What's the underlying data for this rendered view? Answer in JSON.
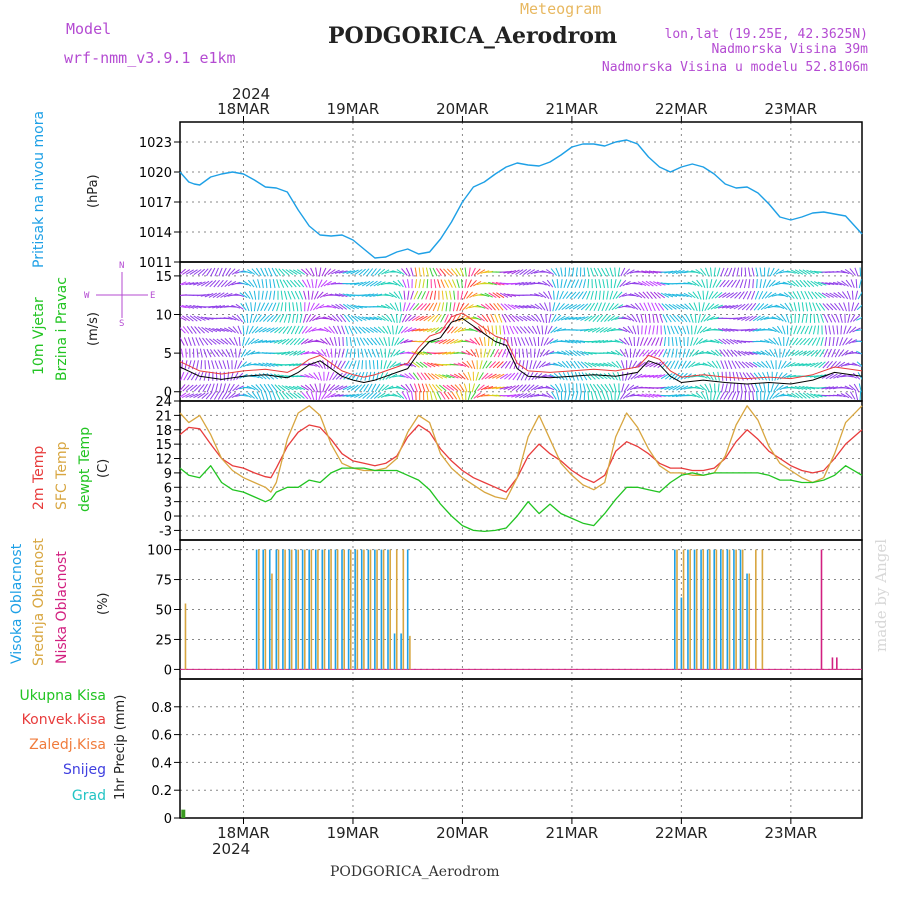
{
  "header": {
    "model_label": "Model",
    "model_name": "wrf-nmm_v3.9.1 e1km",
    "product": "Meteogram",
    "station": "PODGORICA_Aerodrom",
    "lonlat": "lon,lat (19.25E, 42.3625N)",
    "elevation": "Nadmorska Visina 39m",
    "model_elevation": "Nadmorska Visina u modelu 52.8106m",
    "watermark": "made by Angel",
    "footer_station": "PODGORICA_Aerodrom",
    "year": "2024"
  },
  "colors": {
    "pressure": "#1ea0e6",
    "t2m": "#e83c3c",
    "sfc": "#d8a640",
    "dewpt": "#22c422",
    "cloud_high": "#1ea0e6",
    "cloud_mid": "#d8a640",
    "cloud_low": "#d22080",
    "label_wind": "#22c422",
    "label_precip_total": "#22c422",
    "label_precip_conv": "#e83c3c",
    "label_precip_frozen": "#f07c3c",
    "label_snow": "#4040e0",
    "label_hail": "#22c4c4"
  },
  "chart_data": [
    {
      "type": "line",
      "title": "Pritisak na nivou mora",
      "ylabel": "(hPa)",
      "ylim": [
        1011,
        1025
      ],
      "yticks": [
        1011,
        1014,
        1017,
        1020,
        1023
      ],
      "x_unit": "days from 18MAR 00UTC",
      "xlim": [
        -0.58,
        5.65
      ],
      "xtick_labels": [
        "18MAR",
        "19MAR",
        "20MAR",
        "21MAR",
        "22MAR",
        "23MAR"
      ],
      "series": [
        {
          "name": "",
          "x": [
            -0.58,
            -0.5,
            -0.45,
            -0.4,
            -0.3,
            -0.2,
            -0.1,
            0.0,
            0.1,
            0.2,
            0.3,
            0.4,
            0.5,
            0.6,
            0.7,
            0.8,
            0.9,
            1.0,
            1.1,
            1.2,
            1.3,
            1.4,
            1.5,
            1.6,
            1.7,
            1.8,
            1.9,
            2.0,
            2.1,
            2.2,
            2.3,
            2.4,
            2.5,
            2.6,
            2.7,
            2.8,
            2.9,
            3.0,
            3.1,
            3.2,
            3.3,
            3.4,
            3.5,
            3.6,
            3.7,
            3.8,
            3.9,
            4.0,
            4.1,
            4.2,
            4.3,
            4.4,
            4.5,
            4.6,
            4.7,
            4.8,
            4.9,
            5.0,
            5.1,
            5.2,
            5.3,
            5.4,
            5.5,
            5.65
          ],
          "y": [
            1020.0,
            1019.0,
            1018.8,
            1018.7,
            1019.5,
            1019.8,
            1020.0,
            1019.8,
            1019.2,
            1018.5,
            1018.4,
            1018.0,
            1016.2,
            1014.6,
            1013.7,
            1013.6,
            1013.7,
            1013.2,
            1012.3,
            1011.4,
            1011.5,
            1012.0,
            1012.3,
            1011.8,
            1012.0,
            1013.3,
            1015.0,
            1017.0,
            1018.5,
            1019.0,
            1019.8,
            1020.5,
            1020.9,
            1020.7,
            1020.6,
            1021.0,
            1021.7,
            1022.5,
            1022.8,
            1022.8,
            1022.6,
            1023.0,
            1023.2,
            1022.8,
            1021.5,
            1020.5,
            1020.0,
            1020.5,
            1020.8,
            1020.5,
            1019.8,
            1018.8,
            1018.4,
            1018.5,
            1017.9,
            1016.8,
            1015.5,
            1015.2,
            1015.5,
            1015.9,
            1016.0,
            1015.8,
            1015.6,
            1013.8
          ]
        }
      ]
    },
    {
      "type": "line",
      "title": "10m Vjetar",
      "subtitle": "Brzina i Pravac",
      "ylabel": "(m/s)",
      "direction_legend": [
        "N",
        "W",
        "E",
        "S"
      ],
      "ylim": [
        -1.2,
        16.8
      ],
      "yticks": [
        0,
        5,
        10,
        15
      ],
      "xlim": [
        -0.58,
        5.65
      ],
      "series": [
        {
          "name": "",
          "x": [
            -0.58,
            -0.4,
            -0.2,
            0.0,
            0.2,
            0.4,
            0.5,
            0.6,
            0.7,
            0.8,
            0.9,
            1.0,
            1.1,
            1.2,
            1.3,
            1.4,
            1.5,
            1.6,
            1.7,
            1.8,
            1.9,
            2.0,
            2.1,
            2.2,
            2.3,
            2.4,
            2.5,
            2.6,
            2.8,
            3.0,
            3.2,
            3.4,
            3.6,
            3.7,
            3.8,
            3.9,
            4.0,
            4.2,
            4.4,
            4.6,
            4.8,
            5.0,
            5.2,
            5.4,
            5.65
          ],
          "y": [
            3.2,
            2.0,
            1.6,
            2.0,
            2.2,
            1.8,
            2.5,
            3.5,
            4.0,
            3.0,
            2.0,
            1.5,
            1.2,
            1.5,
            2.0,
            2.5,
            3.0,
            5.0,
            6.5,
            7.0,
            9.0,
            9.5,
            8.5,
            7.5,
            6.5,
            6.0,
            3.0,
            2.0,
            1.8,
            2.0,
            2.2,
            2.0,
            2.5,
            4.0,
            3.5,
            2.0,
            1.2,
            1.5,
            1.2,
            1.0,
            1.2,
            1.0,
            1.5,
            2.5,
            2.0
          ]
        }
      ]
    },
    {
      "type": "line",
      "ylabel": "(C)",
      "ylim": [
        -5,
        24
      ],
      "yticks": [
        -3,
        0,
        3,
        6,
        9,
        12,
        15,
        18,
        21,
        24
      ],
      "xlim": [
        -0.58,
        5.65
      ],
      "x": [
        -0.58,
        -0.5,
        -0.4,
        -0.3,
        -0.2,
        -0.1,
        0.0,
        0.1,
        0.2,
        0.25,
        0.3,
        0.4,
        0.5,
        0.6,
        0.7,
        0.8,
        0.9,
        1.0,
        1.1,
        1.2,
        1.3,
        1.4,
        1.5,
        1.6,
        1.7,
        1.8,
        1.9,
        2.0,
        2.1,
        2.2,
        2.3,
        2.4,
        2.5,
        2.6,
        2.7,
        2.8,
        2.9,
        3.0,
        3.1,
        3.2,
        3.3,
        3.4,
        3.5,
        3.6,
        3.7,
        3.8,
        3.9,
        4.0,
        4.1,
        4.2,
        4.3,
        4.4,
        4.5,
        4.6,
        4.7,
        4.8,
        4.9,
        5.0,
        5.1,
        5.2,
        5.3,
        5.4,
        5.5,
        5.65
      ],
      "series": [
        {
          "name": "2m Temp",
          "y": [
            17.0,
            18.5,
            18.2,
            15.0,
            12.0,
            10.5,
            10.0,
            9.0,
            8.2,
            8.0,
            10.0,
            14.5,
            17.5,
            19.0,
            18.5,
            16.0,
            13.0,
            11.5,
            11.0,
            10.5,
            11.0,
            12.5,
            16.5,
            19.0,
            17.5,
            14.0,
            11.5,
            9.5,
            8.0,
            7.0,
            6.0,
            5.0,
            8.0,
            12.5,
            15.0,
            13.0,
            11.5,
            9.5,
            8.0,
            7.0,
            8.5,
            13.5,
            15.5,
            14.5,
            13.0,
            11.0,
            10.0,
            10.0,
            9.5,
            9.5,
            10.0,
            12.0,
            15.5,
            18.0,
            16.0,
            13.5,
            12.0,
            10.5,
            9.5,
            9.0,
            9.5,
            12.0,
            15.0,
            18.0
          ]
        },
        {
          "name": "SFC Temp",
          "y": [
            21.5,
            19.5,
            21.0,
            17.0,
            12.0,
            9.5,
            8.0,
            7.0,
            6.0,
            5.0,
            7.0,
            16.0,
            21.5,
            23.0,
            21.0,
            15.0,
            11.0,
            10.0,
            9.5,
            9.5,
            10.0,
            12.0,
            17.5,
            21.0,
            19.5,
            13.0,
            10.0,
            8.0,
            6.5,
            5.0,
            4.0,
            3.5,
            8.0,
            16.5,
            21.0,
            16.0,
            11.0,
            8.5,
            6.5,
            5.5,
            7.0,
            16.5,
            21.5,
            18.5,
            14.0,
            10.5,
            9.0,
            9.0,
            8.5,
            8.5,
            9.0,
            12.5,
            19.0,
            23.0,
            20.0,
            14.5,
            11.0,
            9.5,
            8.0,
            7.0,
            8.0,
            13.0,
            19.5,
            23.0
          ]
        },
        {
          "name": "dewpt Temp",
          "y": [
            10.0,
            8.5,
            8.0,
            10.5,
            7.0,
            5.5,
            5.0,
            4.0,
            3.0,
            3.5,
            5.0,
            6.0,
            6.0,
            7.5,
            7.0,
            9.0,
            10.0,
            10.0,
            10.0,
            9.5,
            9.5,
            9.5,
            8.5,
            7.5,
            5.5,
            2.5,
            0.0,
            -2.0,
            -3.0,
            -3.2,
            -3.0,
            -2.5,
            0.0,
            3.0,
            0.5,
            2.5,
            0.5,
            -0.5,
            -1.5,
            -2.0,
            0.5,
            3.5,
            6.0,
            6.0,
            5.5,
            5.0,
            7.0,
            8.5,
            9.0,
            8.5,
            9.0,
            9.0,
            9.0,
            9.0,
            9.0,
            8.5,
            7.5,
            7.5,
            7.0,
            7.0,
            7.5,
            8.5,
            10.5,
            8.5
          ]
        }
      ]
    },
    {
      "type": "bar",
      "ylabel": "(%)",
      "ylim": [
        -8,
        108
      ],
      "yticks": [
        0,
        25,
        50,
        75,
        100
      ],
      "xlim": [
        -0.58,
        5.65
      ],
      "series": [
        {
          "name": "Visoka Oblacnost",
          "x": [
            0.12,
            0.18,
            0.24,
            0.3,
            0.36,
            0.42,
            0.48,
            0.54,
            0.6,
            0.66,
            0.72,
            0.78,
            0.84,
            0.9,
            0.96,
            1.02,
            1.08,
            1.14,
            1.2,
            1.26,
            1.32,
            1.38,
            1.44,
            1.5,
            3.94,
            4.0,
            4.06,
            4.12,
            4.18,
            4.24,
            4.3,
            4.36,
            4.42,
            4.48,
            4.54,
            4.6
          ],
          "values": [
            100,
            100,
            100,
            100,
            100,
            100,
            100,
            100,
            100,
            100,
            100,
            100,
            100,
            100,
            100,
            100,
            100,
            100,
            100,
            100,
            100,
            30,
            30,
            100,
            100,
            60,
            100,
            100,
            100,
            100,
            100,
            100,
            100,
            100,
            100,
            80
          ]
        },
        {
          "name": "Srednja Oblacnost",
          "x": [
            -0.53,
            0.14,
            0.2,
            0.26,
            0.32,
            0.38,
            0.44,
            0.5,
            0.56,
            0.62,
            0.68,
            0.74,
            0.8,
            0.86,
            0.92,
            0.98,
            1.04,
            1.1,
            1.16,
            1.22,
            1.28,
            1.34,
            1.4,
            1.46,
            1.52,
            3.96,
            4.02,
            4.08,
            4.14,
            4.2,
            4.26,
            4.32,
            4.38,
            4.44,
            4.5,
            4.56,
            4.62,
            4.68,
            4.74
          ],
          "values": [
            55,
            100,
            100,
            80,
            100,
            100,
            100,
            100,
            100,
            100,
            100,
            100,
            100,
            100,
            100,
            100,
            100,
            100,
            100,
            100,
            100,
            100,
            100,
            100,
            28,
            100,
            100,
            100,
            100,
            100,
            100,
            100,
            100,
            100,
            100,
            100,
            80,
            100,
            100
          ]
        },
        {
          "name": "Niska Oblacnost",
          "x": [
            5.28,
            5.38,
            5.42
          ],
          "values": [
            100,
            10,
            10
          ]
        }
      ]
    },
    {
      "type": "bar",
      "ylabel": "1hr Precip (mm)",
      "ylim": [
        0,
        1.0
      ],
      "yticks": [
        0,
        0.2,
        0.4,
        0.6,
        0.8
      ],
      "xlim": [
        -0.58,
        5.65
      ],
      "xtick_labels": [
        "18MAR",
        "19MAR",
        "20MAR",
        "21MAR",
        "22MAR",
        "23MAR"
      ],
      "legend": [
        "Ukupna Kisa",
        "Konvek.Kisa",
        "Zaledj.Kisa",
        "Snijeg",
        "Grad"
      ],
      "series": [
        {
          "name": "Ukupna Kisa",
          "x": [
            -0.55
          ],
          "values": [
            0.06
          ]
        }
      ]
    }
  ]
}
